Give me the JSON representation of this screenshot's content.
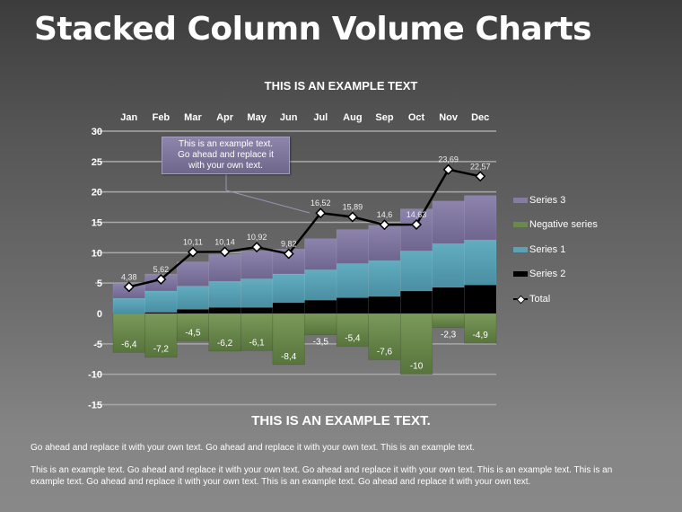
{
  "page": {
    "title": "Stacked Column Volume Charts",
    "sub_heading": "THIS IS AN EXAMPLE TEXT.",
    "paragraphs": [
      "Go ahead and replace it with your own text. Go ahead and replace it with your own text. This is an example text.",
      "This is an example text. Go ahead and replace it with your own text. Go ahead and replace it with your own text. This is an example text. This is an example text. Go ahead and replace it with your own text. This is an example text. Go ahead and replace it with your own text."
    ],
    "callout": {
      "line1": "This is an example text.",
      "line2": "Go ahead and replace it",
      "line3": "with your own text."
    }
  },
  "colors": {
    "series3": "#857ba3",
    "negative": "#6a8a4c",
    "series1": "#5aa3b6",
    "series2": "#000000",
    "total_line": "#000000",
    "gridline": "#a0a0a0"
  },
  "chart_data": {
    "type": "bar",
    "stacked": true,
    "title": "THIS IS AN EXAMPLE TEXT",
    "xlabel": "",
    "ylabel": "",
    "categories": [
      "Jan",
      "Feb",
      "Mar",
      "Apr",
      "May",
      "Jun",
      "Jul",
      "Aug",
      "Sep",
      "Oct",
      "Nov",
      "Dec"
    ],
    "ylim": [
      -15,
      30
    ],
    "yticks": [
      30,
      25,
      20,
      15,
      10,
      5,
      0,
      -5,
      -10,
      -15
    ],
    "grid": true,
    "x_axis_position": "top",
    "legend_position": "right",
    "series": [
      {
        "name": "Series 2",
        "type": "bar",
        "values": [
          0,
          0.2,
          0.7,
          1.0,
          1.0,
          1.8,
          2.2,
          2.6,
          2.8,
          3.7,
          4.3,
          4.7
        ]
      },
      {
        "name": "Series 1",
        "type": "bar",
        "values": [
          2.5,
          3.5,
          3.8,
          4.3,
          4.7,
          4.7,
          5.0,
          5.6,
          5.9,
          6.6,
          7.2,
          7.4
        ]
      },
      {
        "name": "Series 3",
        "type": "bar",
        "values": [
          2.5,
          2.8,
          4.0,
          4.4,
          4.6,
          4.1,
          5.1,
          5.6,
          5.8,
          6.9,
          7.0,
          7.3
        ]
      },
      {
        "name": "Negative series",
        "type": "bar",
        "values": [
          -6.4,
          -7.2,
          -4.5,
          -6.2,
          -6.1,
          -8.4,
          -3.5,
          -5.4,
          -7.6,
          -10,
          -2.3,
          -4.9
        ],
        "labels": [
          "-6,4",
          "-7,2",
          "-4,5",
          "-6,2",
          "-6,1",
          "-8,4",
          "-3,5",
          "-5,4",
          "-7,6",
          "-10",
          "-2,3",
          "-4,9"
        ]
      },
      {
        "name": "Total",
        "type": "line",
        "values": [
          4.38,
          5.62,
          10.11,
          10.14,
          10.92,
          9.82,
          16.52,
          15.89,
          14.6,
          14.63,
          23.69,
          22.57
        ],
        "labels": [
          "4,38",
          "5,62",
          "10,11",
          "10,14",
          "10,92",
          "9,82",
          "16,52",
          "15,89",
          "14,6",
          "14,63",
          "23,69",
          "22,57"
        ]
      }
    ],
    "legend": [
      "Series 3",
      "Negative series",
      "Series 1",
      "Series 2",
      "Total"
    ]
  }
}
